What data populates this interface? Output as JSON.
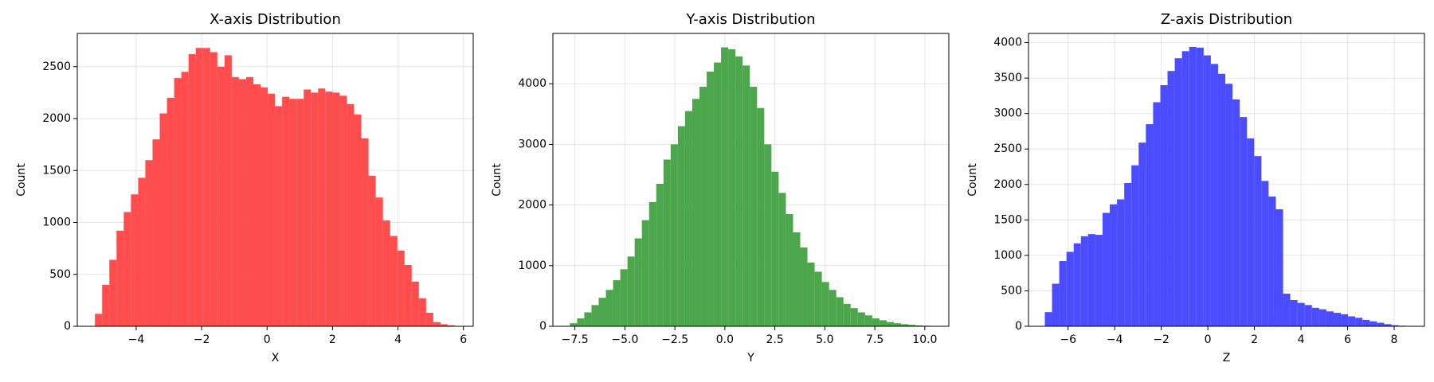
{
  "chart_data": [
    {
      "type": "histogram",
      "title": "X-axis Distribution",
      "xlabel": "X",
      "ylabel": "Count",
      "color": "#ff4c4c",
      "grid": true,
      "bins": [
        -5.26,
        -5.04,
        -4.82,
        -4.6,
        -4.38,
        -4.16,
        -3.94,
        -3.72,
        -3.5,
        -3.28,
        -3.06,
        -2.84,
        -2.62,
        -2.4,
        -2.18,
        -1.96,
        -1.74,
        -1.52,
        -1.3,
        -1.08,
        -0.86,
        -0.64,
        -0.42,
        -0.2,
        0.02,
        0.24,
        0.46,
        0.68,
        0.9,
        1.12,
        1.34,
        1.56,
        1.78,
        2.0,
        2.22,
        2.44,
        2.66,
        2.88,
        3.1,
        3.32,
        3.54,
        3.76,
        3.98,
        4.2,
        4.42,
        4.64,
        4.86,
        5.08,
        5.3,
        5.52,
        5.74
      ],
      "values": [
        120,
        400,
        640,
        920,
        1100,
        1270,
        1430,
        1600,
        1800,
        2050,
        2200,
        2390,
        2450,
        2620,
        2680,
        2680,
        2640,
        2500,
        2610,
        2400,
        2380,
        2400,
        2330,
        2300,
        2240,
        2120,
        2210,
        2190,
        2190,
        2280,
        2250,
        2290,
        2260,
        2250,
        2220,
        2140,
        2040,
        1810,
        1450,
        1240,
        1020,
        870,
        730,
        590,
        430,
        270,
        130,
        40,
        20,
        10
      ],
      "xlim": [
        -5.8,
        6.3
      ],
      "xticks": [
        {
          "value": -4,
          "label": "−4"
        },
        {
          "value": -2,
          "label": "−2"
        },
        0,
        2,
        4,
        6
      ],
      "ylim": [
        0,
        2820
      ],
      "yticks": [
        0,
        500,
        1000,
        1500,
        2000,
        2500
      ]
    },
    {
      "type": "histogram",
      "title": "Y-axis Distribution",
      "xlabel": "Y",
      "ylabel": "Count",
      "color": "#4ca64c",
      "grid": true,
      "bins": [
        -7.75,
        -7.39,
        -7.03,
        -6.67,
        -6.31,
        -5.95,
        -5.59,
        -5.23,
        -4.87,
        -4.51,
        -4.15,
        -3.79,
        -3.43,
        -3.07,
        -2.71,
        -2.35,
        -1.99,
        -1.63,
        -1.27,
        -0.91,
        -0.55,
        -0.19,
        0.17,
        0.53,
        0.89,
        1.25,
        1.61,
        1.97,
        2.33,
        2.69,
        3.05,
        3.41,
        3.77,
        4.13,
        4.49,
        4.85,
        5.21,
        5.57,
        5.93,
        6.29,
        6.65,
        7.01,
        7.37,
        7.73,
        8.09,
        8.45,
        8.81,
        9.17,
        9.53,
        9.89,
        10.25
      ],
      "values": [
        50,
        130,
        230,
        350,
        470,
        600,
        760,
        940,
        1150,
        1450,
        1750,
        2050,
        2350,
        2750,
        3000,
        3300,
        3550,
        3750,
        3950,
        4200,
        4350,
        4600,
        4570,
        4450,
        4300,
        3950,
        3600,
        3000,
        2550,
        2200,
        1850,
        1550,
        1300,
        1050,
        900,
        730,
        600,
        480,
        370,
        300,
        230,
        180,
        130,
        100,
        70,
        50,
        35,
        25,
        15,
        10
      ],
      "xlim": [
        -8.6,
        11.2
      ],
      "xticks": [
        {
          "value": -7.5,
          "label": "−7.5"
        },
        {
          "value": -5,
          "label": "−5.0"
        },
        {
          "value": -2.5,
          "label": "−2.5"
        },
        {
          "value": 0,
          "label": "0.0"
        },
        2.5,
        {
          "value": 5,
          "label": "5.0"
        },
        7.5,
        {
          "value": 10,
          "label": "10.0"
        }
      ],
      "ylim": [
        0,
        4830
      ],
      "yticks": [
        0,
        1000,
        2000,
        3000,
        4000
      ]
    },
    {
      "type": "histogram",
      "title": "Z-axis Distribution",
      "xlabel": "Z",
      "ylabel": "Count",
      "color": "#4c4cff",
      "grid": true,
      "bins": [
        -7,
        -6.69,
        -6.38,
        -6.07,
        -5.76,
        -5.45,
        -5.14,
        -4.83,
        -4.52,
        -4.21,
        -3.9,
        -3.59,
        -3.28,
        -2.97,
        -2.66,
        -2.35,
        -2.04,
        -1.73,
        -1.42,
        -1.11,
        -0.8,
        -0.49,
        -0.18,
        0.13,
        0.44,
        0.75,
        1.06,
        1.37,
        1.68,
        1.99,
        2.3,
        2.61,
        2.92,
        3.23,
        3.54,
        3.85,
        4.16,
        4.47,
        4.78,
        5.09,
        5.4,
        5.71,
        6.02,
        6.33,
        6.64,
        6.95,
        7.26,
        7.57,
        7.88,
        8.19,
        8.5
      ],
      "values": [
        200,
        600,
        920,
        1050,
        1170,
        1270,
        1300,
        1290,
        1600,
        1720,
        1790,
        2020,
        2270,
        2590,
        2850,
        3160,
        3400,
        3600,
        3780,
        3880,
        3940,
        3930,
        3820,
        3700,
        3560,
        3420,
        3200,
        2950,
        2650,
        2400,
        2050,
        1830,
        1650,
        460,
        370,
        330,
        300,
        260,
        240,
        210,
        190,
        170,
        140,
        120,
        90,
        70,
        50,
        30,
        15,
        8
      ],
      "xlim": [
        -7.7,
        9.3
      ],
      "xticks": [
        {
          "value": -6,
          "label": "−6"
        },
        {
          "value": -4,
          "label": "−4"
        },
        {
          "value": -2,
          "label": "−2"
        },
        0,
        2,
        4,
        6,
        8
      ],
      "ylim": [
        0,
        4130
      ],
      "yticks": [
        0,
        500,
        1000,
        1500,
        2000,
        2500,
        3000,
        3500,
        4000
      ]
    }
  ]
}
